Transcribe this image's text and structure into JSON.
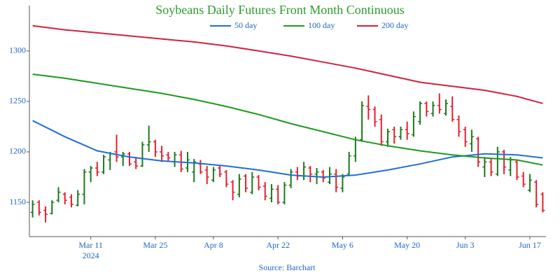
{
  "chart_data": {
    "type": "ohlc",
    "title": "Soybeans Daily Futures Front Month Continuous",
    "source": "Source: Barchart",
    "x_year_label": "2024",
    "x": [
      "2024-02-27",
      "2024-02-28",
      "2024-02-29",
      "2024-03-01",
      "2024-03-04",
      "2024-03-05",
      "2024-03-06",
      "2024-03-07",
      "2024-03-08",
      "2024-03-11",
      "2024-03-12",
      "2024-03-13",
      "2024-03-14",
      "2024-03-15",
      "2024-03-18",
      "2024-03-19",
      "2024-03-20",
      "2024-03-21",
      "2024-03-22",
      "2024-03-25",
      "2024-03-26",
      "2024-03-27",
      "2024-03-28",
      "2024-04-01",
      "2024-04-02",
      "2024-04-03",
      "2024-04-04",
      "2024-04-05",
      "2024-04-08",
      "2024-04-09",
      "2024-04-10",
      "2024-04-11",
      "2024-04-12",
      "2024-04-15",
      "2024-04-16",
      "2024-04-17",
      "2024-04-18",
      "2024-04-19",
      "2024-04-22",
      "2024-04-23",
      "2024-04-24",
      "2024-04-25",
      "2024-04-26",
      "2024-04-29",
      "2024-04-30",
      "2024-05-01",
      "2024-05-02",
      "2024-05-03",
      "2024-05-06",
      "2024-05-07",
      "2024-05-08",
      "2024-05-09",
      "2024-05-10",
      "2024-05-13",
      "2024-05-14",
      "2024-05-15",
      "2024-05-16",
      "2024-05-17",
      "2024-05-20",
      "2024-05-21",
      "2024-05-22",
      "2024-05-23",
      "2024-05-24",
      "2024-05-28",
      "2024-05-29",
      "2024-05-30",
      "2024-05-31",
      "2024-06-03",
      "2024-06-04",
      "2024-06-05",
      "2024-06-06",
      "2024-06-07",
      "2024-06-10",
      "2024-06-11",
      "2024-06-12",
      "2024-06-13",
      "2024-06-14",
      "2024-06-17",
      "2024-06-18",
      "2024-06-20"
    ],
    "open": [
      1140,
      1150,
      1142,
      1139,
      1152,
      1158,
      1155,
      1147,
      1158,
      1180,
      1184,
      1180,
      1192,
      1200,
      1195,
      1198,
      1190,
      1186,
      1207,
      1210,
      1200,
      1197,
      1190,
      1197,
      1184,
      1180,
      1188,
      1182,
      1172,
      1184,
      1180,
      1170,
      1158,
      1176,
      1160,
      1175,
      1166,
      1154,
      1163,
      1150,
      1167,
      1180,
      1176,
      1184,
      1178,
      1180,
      1170,
      1178,
      1164,
      1178,
      1196,
      1212,
      1245,
      1242,
      1232,
      1210,
      1222,
      1215,
      1222,
      1217,
      1230,
      1248,
      1238,
      1246,
      1238,
      1245,
      1232,
      1222,
      1208,
      1213,
      1185,
      1190,
      1178,
      1200,
      1182,
      1190,
      1176,
      1162,
      1170,
      1158
    ],
    "high": [
      1152,
      1152,
      1146,
      1152,
      1165,
      1160,
      1158,
      1162,
      1183,
      1186,
      1190,
      1197,
      1200,
      1217,
      1200,
      1200,
      1195,
      1210,
      1226,
      1212,
      1206,
      1200,
      1200,
      1201,
      1200,
      1193,
      1192,
      1186,
      1185,
      1187,
      1182,
      1172,
      1178,
      1178,
      1180,
      1177,
      1170,
      1168,
      1167,
      1170,
      1183,
      1185,
      1190,
      1186,
      1184,
      1182,
      1185,
      1183,
      1178,
      1200,
      1215,
      1250,
      1256,
      1245,
      1237,
      1223,
      1225,
      1225,
      1230,
      1240,
      1250,
      1250,
      1250,
      1258,
      1252,
      1255,
      1236,
      1225,
      1222,
      1215,
      1195,
      1193,
      1205,
      1202,
      1195,
      1192,
      1180,
      1178,
      1172,
      1160
    ],
    "low": [
      1135,
      1137,
      1130,
      1138,
      1150,
      1148,
      1145,
      1146,
      1148,
      1170,
      1176,
      1178,
      1182,
      1190,
      1186,
      1186,
      1183,
      1185,
      1200,
      1195,
      1190,
      1190,
      1185,
      1180,
      1180,
      1170,
      1178,
      1168,
      1170,
      1175,
      1165,
      1152,
      1155,
      1160,
      1158,
      1162,
      1152,
      1150,
      1148,
      1148,
      1164,
      1172,
      1172,
      1170,
      1168,
      1170,
      1168,
      1160,
      1160,
      1176,
      1190,
      1210,
      1232,
      1225,
      1206,
      1205,
      1208,
      1212,
      1212,
      1215,
      1227,
      1235,
      1235,
      1238,
      1236,
      1230,
      1215,
      1205,
      1200,
      1185,
      1175,
      1176,
      1176,
      1178,
      1176,
      1172,
      1165,
      1160,
      1145,
      1140
    ],
    "close": [
      1148,
      1140,
      1138,
      1150,
      1160,
      1152,
      1148,
      1158,
      1180,
      1184,
      1180,
      1195,
      1198,
      1195,
      1198,
      1188,
      1186,
      1207,
      1210,
      1200,
      1196,
      1194,
      1197,
      1183,
      1192,
      1190,
      1180,
      1175,
      1182,
      1178,
      1168,
      1160,
      1173,
      1164,
      1175,
      1165,
      1156,
      1163,
      1150,
      1167,
      1180,
      1176,
      1185,
      1178,
      1180,
      1174,
      1178,
      1165,
      1175,
      1196,
      1212,
      1246,
      1242,
      1230,
      1210,
      1220,
      1215,
      1222,
      1218,
      1235,
      1248,
      1240,
      1246,
      1242,
      1248,
      1232,
      1220,
      1210,
      1215,
      1190,
      1190,
      1180,
      1200,
      1185,
      1192,
      1175,
      1168,
      1172,
      1148,
      1142
    ],
    "up_color": "#1a7a1a",
    "down_color": "#e3202e",
    "series": [
      {
        "name": "50 day",
        "color": "#1f6fd6",
        "x": [
          "2024-02-27",
          "2024-03-05",
          "2024-03-12",
          "2024-03-19",
          "2024-03-26",
          "2024-04-03",
          "2024-04-10",
          "2024-04-17",
          "2024-04-24",
          "2024-05-01",
          "2024-05-08",
          "2024-05-15",
          "2024-05-22",
          "2024-05-30",
          "2024-06-06",
          "2024-06-13",
          "2024-06-20"
        ],
        "values": [
          1231,
          1215,
          1201,
          1195,
          1191,
          1189,
          1186,
          1182,
          1177,
          1175,
          1177,
          1182,
          1188,
          1195,
          1198,
          1197,
          1194
        ]
      },
      {
        "name": "100 day",
        "color": "#1d9a1d",
        "x": [
          "2024-02-27",
          "2024-03-05",
          "2024-03-12",
          "2024-03-19",
          "2024-03-26",
          "2024-04-03",
          "2024-04-10",
          "2024-04-17",
          "2024-04-24",
          "2024-05-01",
          "2024-05-08",
          "2024-05-15",
          "2024-05-22",
          "2024-05-30",
          "2024-06-06",
          "2024-06-13",
          "2024-06-20"
        ],
        "values": [
          1277,
          1273,
          1268,
          1263,
          1258,
          1252,
          1245,
          1237,
          1228,
          1220,
          1212,
          1206,
          1201,
          1197,
          1194,
          1192,
          1187
        ]
      },
      {
        "name": "200 day",
        "color": "#d0213f",
        "x": [
          "2024-02-27",
          "2024-03-05",
          "2024-03-12",
          "2024-03-19",
          "2024-03-26",
          "2024-04-03",
          "2024-04-10",
          "2024-04-17",
          "2024-04-24",
          "2024-05-01",
          "2024-05-08",
          "2024-05-15",
          "2024-05-22",
          "2024-05-30",
          "2024-06-06",
          "2024-06-13",
          "2024-06-20"
        ],
        "values": [
          1325,
          1321,
          1318,
          1315,
          1312,
          1309,
          1305,
          1300,
          1295,
          1289,
          1283,
          1276,
          1269,
          1265,
          1261,
          1255,
          1248
        ]
      }
    ],
    "ylim": [
      1116,
      1345
    ],
    "yticks": [
      1150,
      1200,
      1250,
      1300
    ],
    "xticks": [
      {
        "value": "2024-03-11",
        "label": "Mar 11"
      },
      {
        "value": "2024-03-25",
        "label": "Mar 25"
      },
      {
        "value": "2024-04-08",
        "label": "Apr 8"
      },
      {
        "value": "2024-04-22",
        "label": "Apr 22"
      },
      {
        "value": "2024-05-06",
        "label": "May 6"
      },
      {
        "value": "2024-05-20",
        "label": "May 20"
      },
      {
        "value": "2024-06-03",
        "label": "Jun 3"
      },
      {
        "value": "2024-06-17",
        "label": "Jun 17"
      }
    ],
    "legend": "top"
  }
}
